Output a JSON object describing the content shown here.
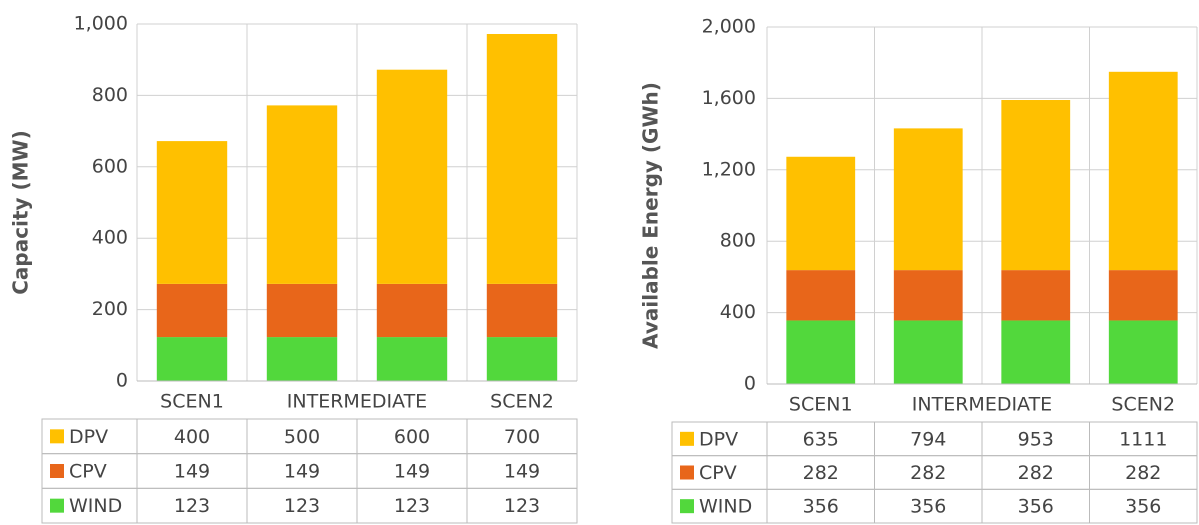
{
  "chart_data": [
    {
      "type": "bar",
      "stacked": true,
      "ylabel": "Capacity (MW)",
      "categories": [
        "SCEN1",
        "INTERMEDIATE",
        null,
        "SCEN2"
      ],
      "series": [
        {
          "name": "DPV",
          "color": "#ffc000",
          "values": [
            400,
            500,
            600,
            700
          ]
        },
        {
          "name": "CPV",
          "color": "#e8661a",
          "values": [
            149,
            149,
            149,
            149
          ]
        },
        {
          "name": "WIND",
          "color": "#52d83c",
          "values": [
            123,
            123,
            123,
            123
          ]
        }
      ],
      "ylim": [
        0,
        1000
      ],
      "yticks": [
        0,
        200,
        400,
        600,
        800,
        {
          "value": 1000,
          "label": "1,000"
        }
      ],
      "grid": true
    },
    {
      "type": "bar",
      "stacked": true,
      "ylabel": "Available Energy (GWh)",
      "categories": [
        "SCEN1",
        "INTERMEDIATE",
        null,
        "SCEN2"
      ],
      "series": [
        {
          "name": "DPV",
          "color": "#ffc000",
          "values": [
            635,
            794,
            953,
            1111
          ]
        },
        {
          "name": "CPV",
          "color": "#e8661a",
          "values": [
            282,
            282,
            282,
            282
          ]
        },
        {
          "name": "WIND",
          "color": "#52d83c",
          "values": [
            356,
            356,
            356,
            356
          ]
        }
      ],
      "ylim": [
        0,
        2000
      ],
      "yticks": [
        0,
        400,
        800,
        {
          "value": 1200,
          "label": "1,200"
        },
        {
          "value": 1600,
          "label": "1,600"
        },
        {
          "value": 2000,
          "label": "2,000"
        }
      ],
      "grid": true
    }
  ]
}
